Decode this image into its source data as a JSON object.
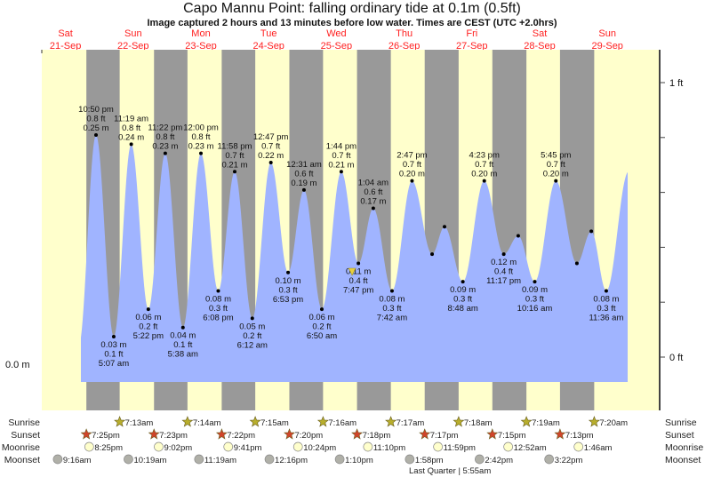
{
  "title": "Capo Mannu Point: falling  ordinary tide at 0.1m (0.5ft)",
  "subtitle": "Image captured 2 hours and 13 minutes before low water. Times are CEST (UTC +2.0hrs)",
  "colors": {
    "day": "#ffffcc",
    "night": "#999999",
    "water": "#a0b4ff",
    "day_label": "#ff2020",
    "sunrise_star": "#b8ae2c",
    "sunset_star": "#d0442a",
    "moonrise": "#ffffcc",
    "moonset": "#b0b0a8",
    "now_marker": "#e8d040"
  },
  "days": [
    {
      "dow": "Sat",
      "date": "21-Sep"
    },
    {
      "dow": "Sun",
      "date": "22-Sep"
    },
    {
      "dow": "Mon",
      "date": "23-Sep"
    },
    {
      "dow": "Tue",
      "date": "24-Sep"
    },
    {
      "dow": "Wed",
      "date": "25-Sep"
    },
    {
      "dow": "Thu",
      "date": "26-Sep"
    },
    {
      "dow": "Fri",
      "date": "27-Sep"
    },
    {
      "dow": "Sat",
      "date": "28-Sep"
    },
    {
      "dow": "Sun",
      "date": "29-Sep"
    }
  ],
  "chart_data": {
    "type": "area",
    "left_axis": {
      "label": "0.0 m",
      "value_m": 0.0
    },
    "right_axis": {
      "tick_labels": [
        "1 ft",
        "0 ft"
      ],
      "ticks_ft": [
        0,
        0.2,
        0.4,
        0.6,
        0.8,
        1.0
      ],
      "ylim_ft": [
        -0.2,
        1.1
      ]
    },
    "now_marker": {
      "date": "25-Sep",
      "time": "5:34 pm"
    },
    "extremes": [
      {
        "type": "high",
        "date": "21-Sep",
        "time": "10:50 pm",
        "ft": "0.8 ft",
        "m": "0.25 m",
        "value": 0.25
      },
      {
        "type": "low",
        "date": "22-Sep",
        "time": "5:07 am",
        "ft": "0.1 ft",
        "m": "0.03 m",
        "value": 0.03
      },
      {
        "type": "high",
        "date": "22-Sep",
        "time": "11:19 am",
        "ft": "0.8 ft",
        "m": "0.24 m",
        "value": 0.24
      },
      {
        "type": "low",
        "date": "22-Sep",
        "time": "5:22 pm",
        "ft": "0.2 ft",
        "m": "0.06 m",
        "value": 0.06
      },
      {
        "type": "high",
        "date": "22-Sep",
        "time": "11:22 pm",
        "ft": "0.8 ft",
        "m": "0.23 m",
        "value": 0.23
      },
      {
        "type": "low",
        "date": "23-Sep",
        "time": "5:38 am",
        "ft": "0.1 ft",
        "m": "0.04 m",
        "value": 0.04
      },
      {
        "type": "high",
        "date": "23-Sep",
        "time": "12:00 pm",
        "ft": "0.8 ft",
        "m": "0.23 m",
        "value": 0.23
      },
      {
        "type": "low",
        "date": "23-Sep",
        "time": "6:08 pm",
        "ft": "0.3 ft",
        "m": "0.08 m",
        "value": 0.08
      },
      {
        "type": "high",
        "date": "23-Sep",
        "time": "11:58 pm",
        "ft": "0.7 ft",
        "m": "0.21 m",
        "value": 0.21
      },
      {
        "type": "low",
        "date": "24-Sep",
        "time": "6:12 am",
        "ft": "0.2 ft",
        "m": "0.05 m",
        "value": 0.05
      },
      {
        "type": "high",
        "date": "24-Sep",
        "time": "12:47 pm",
        "ft": "0.7 ft",
        "m": "0.22 m",
        "value": 0.22
      },
      {
        "type": "low",
        "date": "24-Sep",
        "time": "6:53 pm",
        "ft": "0.3 ft",
        "m": "0.10 m",
        "value": 0.1
      },
      {
        "type": "high",
        "date": "25-Sep",
        "time": "12:31 am",
        "ft": "0.6 ft",
        "m": "0.19 m",
        "value": 0.19
      },
      {
        "type": "low",
        "date": "25-Sep",
        "time": "6:50 am",
        "ft": "0.2 ft",
        "m": "0.06 m",
        "value": 0.06
      },
      {
        "type": "high",
        "date": "25-Sep",
        "time": "1:44 pm",
        "ft": "0.7 ft",
        "m": "0.21 m",
        "value": 0.21
      },
      {
        "type": "low",
        "date": "25-Sep",
        "time": "7:47 pm",
        "ft": "0.4 ft",
        "m": "0.11 m",
        "value": 0.11
      },
      {
        "type": "high",
        "date": "26-Sep",
        "time": "1:04 am",
        "ft": "0.6 ft",
        "m": "0.17 m",
        "value": 0.17
      },
      {
        "type": "low",
        "date": "26-Sep",
        "time": "7:42 am",
        "ft": "0.3 ft",
        "m": "0.08 m",
        "value": 0.08
      },
      {
        "type": "high",
        "date": "26-Sep",
        "time": "2:47 pm",
        "ft": "0.7 ft",
        "m": "0.20 m",
        "value": 0.2
      },
      {
        "type": "low",
        "date": "26-Sep",
        "time": "9:54 pm",
        "value": 0.12,
        "unlabeled": true
      },
      {
        "type": "high",
        "date": "27-Sep",
        "time": "2:18 am",
        "value": 0.15,
        "unlabeled": true
      },
      {
        "type": "low",
        "date": "27-Sep",
        "time": "8:48 am",
        "ft": "0.3 ft",
        "m": "0.09 m",
        "value": 0.09
      },
      {
        "type": "high",
        "date": "27-Sep",
        "time": "4:23 pm",
        "ft": "0.7 ft",
        "m": "0.20 m",
        "value": 0.2
      },
      {
        "type": "low",
        "date": "27-Sep",
        "time": "11:17 pm",
        "ft": "0.4 ft",
        "m": "0.12 m",
        "value": 0.12
      },
      {
        "type": "high",
        "date": "28-Sep",
        "time": "4:25 am",
        "value": 0.14,
        "unlabeled": true
      },
      {
        "type": "low",
        "date": "28-Sep",
        "time": "10:16 am",
        "ft": "0.3 ft",
        "m": "0.09 m",
        "value": 0.09
      },
      {
        "type": "high",
        "date": "28-Sep",
        "time": "5:45 pm",
        "ft": "0.7 ft",
        "m": "0.20 m",
        "value": 0.2
      },
      {
        "type": "low",
        "date": "29-Sep",
        "time": "1:12 am",
        "value": 0.11,
        "unlabeled": true
      },
      {
        "type": "high",
        "date": "29-Sep",
        "time": "6:18 am",
        "value": 0.145,
        "unlabeled": true
      },
      {
        "type": "low",
        "date": "29-Sep",
        "time": "11:36 am",
        "ft": "0.3 ft",
        "m": "0.08 m",
        "value": 0.08
      }
    ]
  },
  "rows": {
    "sunrise": {
      "label": "Sunrise",
      "events": [
        {
          "date": "22-Sep",
          "time": "7:13am"
        },
        {
          "date": "23-Sep",
          "time": "7:14am"
        },
        {
          "date": "24-Sep",
          "time": "7:15am"
        },
        {
          "date": "25-Sep",
          "time": "7:16am"
        },
        {
          "date": "26-Sep",
          "time": "7:17am"
        },
        {
          "date": "27-Sep",
          "time": "7:18am"
        },
        {
          "date": "28-Sep",
          "time": "7:19am"
        },
        {
          "date": "29-Sep",
          "time": "7:20am"
        }
      ]
    },
    "sunset": {
      "label": "Sunset",
      "events": [
        {
          "date": "21-Sep",
          "time": "7:25pm"
        },
        {
          "date": "22-Sep",
          "time": "7:23pm"
        },
        {
          "date": "23-Sep",
          "time": "7:22pm"
        },
        {
          "date": "24-Sep",
          "time": "7:20pm"
        },
        {
          "date": "25-Sep",
          "time": "7:18pm"
        },
        {
          "date": "26-Sep",
          "time": "7:17pm"
        },
        {
          "date": "27-Sep",
          "time": "7:15pm"
        },
        {
          "date": "28-Sep",
          "time": "7:13pm"
        }
      ]
    },
    "moonrise": {
      "label": "Moonrise",
      "events": [
        {
          "date": "21-Sep",
          "time": "8:25pm"
        },
        {
          "date": "22-Sep",
          "time": "9:02pm"
        },
        {
          "date": "23-Sep",
          "time": "9:41pm"
        },
        {
          "date": "24-Sep",
          "time": "10:24pm"
        },
        {
          "date": "25-Sep",
          "time": "11:10pm"
        },
        {
          "date": "26-Sep",
          "time": "11:59pm"
        },
        {
          "date": "28-Sep",
          "time": "12:52am"
        },
        {
          "date": "29-Sep",
          "time": "1:46am"
        }
      ]
    },
    "moonset": {
      "label": "Moonset",
      "events": [
        {
          "date": "21-Sep",
          "time": "9:16am"
        },
        {
          "date": "22-Sep",
          "time": "10:19am"
        },
        {
          "date": "23-Sep",
          "time": "11:19am"
        },
        {
          "date": "24-Sep",
          "time": "12:16pm"
        },
        {
          "date": "25-Sep",
          "time": "1:10pm"
        },
        {
          "date": "26-Sep",
          "time": "1:58pm"
        },
        {
          "date": "27-Sep",
          "time": "2:42pm"
        },
        {
          "date": "28-Sep",
          "time": "3:22pm"
        }
      ]
    }
  },
  "moon_phase": "Last Quarter | 5:55am"
}
